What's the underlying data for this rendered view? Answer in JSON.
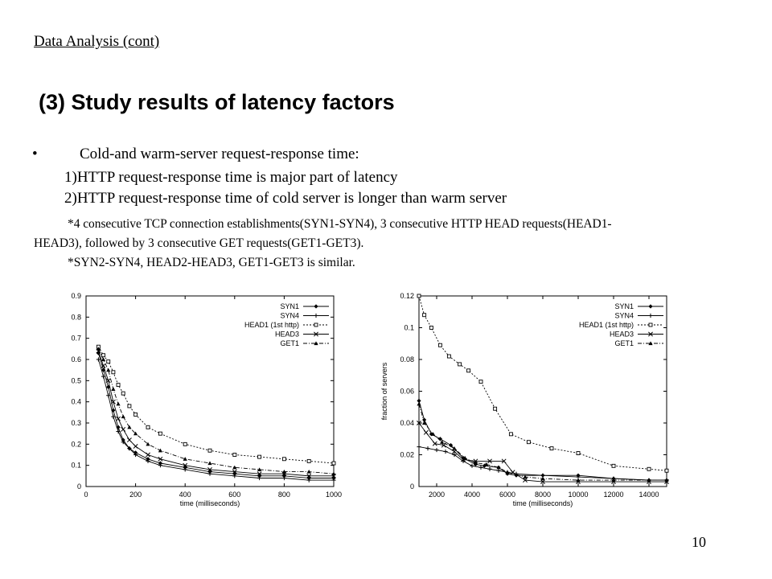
{
  "slide": {
    "section_header": "Data Analysis (cont)",
    "title": "(3) Study results of latency factors",
    "bullet": "•",
    "bullet_text": "Cold-and warm-server request-response time:",
    "points": [
      "1)HTTP request-response time is major part of latency",
      "2)HTTP request-response time of cold server is longer than warm server"
    ],
    "notes": [
      "*4 consecutive TCP connection establishments(SYN1-SYN4), 3 consecutive HTTP HEAD requests(HEAD1-",
      "HEAD3), followed by 3 consecutive GET requests(GET1-GET3).",
      "*SYN2-SYN4, HEAD2-HEAD3, GET1-GET3 is similar."
    ],
    "page_number": "10"
  },
  "chart_data": [
    {
      "type": "line",
      "xlabel": "time (milliseconds)",
      "ylabel": "",
      "xlim": [
        0,
        1000
      ],
      "ylim": [
        0,
        0.9
      ],
      "x_ticks": [
        "0",
        "200",
        "400",
        "600",
        "800",
        "1000"
      ],
      "y_ticks": [
        "0",
        "0.1",
        "0.2",
        "0.3",
        "0.4",
        "0.5",
        "0.6",
        "0.7",
        "0.8",
        "0.9"
      ],
      "legend_position": "top-right",
      "series": [
        {
          "name": "SYN1",
          "marker": "diamond",
          "dash": "solid",
          "points": [
            [
              50,
              0.63
            ],
            [
              70,
              0.55
            ],
            [
              90,
              0.47
            ],
            [
              110,
              0.36
            ],
            [
              130,
              0.28
            ],
            [
              150,
              0.22
            ],
            [
              175,
              0.18
            ],
            [
              200,
              0.16
            ],
            [
              250,
              0.13
            ],
            [
              300,
              0.11
            ],
            [
              400,
              0.09
            ],
            [
              500,
              0.07
            ],
            [
              600,
              0.06
            ],
            [
              700,
              0.05
            ],
            [
              800,
              0.05
            ],
            [
              900,
              0.04
            ],
            [
              1000,
              0.04
            ]
          ]
        },
        {
          "name": "SYN4",
          "marker": "plus",
          "dash": "solid",
          "points": [
            [
              50,
              0.6
            ],
            [
              70,
              0.52
            ],
            [
              90,
              0.43
            ],
            [
              110,
              0.33
            ],
            [
              130,
              0.26
            ],
            [
              150,
              0.21
            ],
            [
              175,
              0.18
            ],
            [
              200,
              0.15
            ],
            [
              250,
              0.12
            ],
            [
              300,
              0.1
            ],
            [
              400,
              0.08
            ],
            [
              500,
              0.06
            ],
            [
              600,
              0.05
            ],
            [
              700,
              0.04
            ],
            [
              800,
              0.04
            ],
            [
              900,
              0.03
            ],
            [
              1000,
              0.03
            ]
          ]
        },
        {
          "name": "HEAD1 (1st http)",
          "marker": "square",
          "dash": "dotted",
          "points": [
            [
              50,
              0.66
            ],
            [
              70,
              0.62
            ],
            [
              90,
              0.59
            ],
            [
              110,
              0.54
            ],
            [
              130,
              0.48
            ],
            [
              150,
              0.44
            ],
            [
              175,
              0.38
            ],
            [
              200,
              0.34
            ],
            [
              250,
              0.28
            ],
            [
              300,
              0.25
            ],
            [
              400,
              0.2
            ],
            [
              500,
              0.17
            ],
            [
              600,
              0.15
            ],
            [
              700,
              0.14
            ],
            [
              800,
              0.13
            ],
            [
              900,
              0.12
            ],
            [
              1000,
              0.11
            ]
          ]
        },
        {
          "name": "HEAD3",
          "marker": "x",
          "dash": "solid",
          "points": [
            [
              50,
              0.64
            ],
            [
              70,
              0.57
            ],
            [
              90,
              0.5
            ],
            [
              110,
              0.4
            ],
            [
              130,
              0.32
            ],
            [
              150,
              0.27
            ],
            [
              175,
              0.22
            ],
            [
              200,
              0.19
            ],
            [
              250,
              0.15
            ],
            [
              300,
              0.13
            ],
            [
              400,
              0.1
            ],
            [
              500,
              0.08
            ],
            [
              600,
              0.07
            ],
            [
              700,
              0.06
            ],
            [
              800,
              0.06
            ],
            [
              900,
              0.05
            ],
            [
              1000,
              0.05
            ]
          ]
        },
        {
          "name": "GET1",
          "marker": "triangle",
          "dash": "dashdot",
          "points": [
            [
              50,
              0.65
            ],
            [
              70,
              0.6
            ],
            [
              90,
              0.55
            ],
            [
              110,
              0.46
            ],
            [
              130,
              0.39
            ],
            [
              150,
              0.33
            ],
            [
              175,
              0.28
            ],
            [
              200,
              0.25
            ],
            [
              250,
              0.2
            ],
            [
              300,
              0.17
            ],
            [
              400,
              0.13
            ],
            [
              500,
              0.11
            ],
            [
              600,
              0.09
            ],
            [
              700,
              0.08
            ],
            [
              800,
              0.07
            ],
            [
              900,
              0.07
            ],
            [
              1000,
              0.06
            ]
          ]
        }
      ]
    },
    {
      "type": "line",
      "xlabel": "time (milliseconds)",
      "ylabel": "fraction of servers",
      "xlim": [
        1000,
        15000
      ],
      "ylim": [
        0,
        0.12
      ],
      "x_ticks": [
        "2000",
        "4000",
        "6000",
        "8000",
        "10000",
        "12000",
        "14000"
      ],
      "y_ticks": [
        "0",
        "0.02",
        "0.04",
        "0.06",
        "0.08",
        "0.1",
        "0.12"
      ],
      "legend_position": "top-right",
      "series": [
        {
          "name": "SYN1",
          "marker": "diamond",
          "dash": "solid",
          "points": [
            [
              1000,
              0.054
            ],
            [
              1300,
              0.042
            ],
            [
              1700,
              0.033
            ],
            [
              2200,
              0.03
            ],
            [
              2800,
              0.026
            ],
            [
              3500,
              0.018
            ],
            [
              4200,
              0.014
            ],
            [
              4700,
              0.013
            ],
            [
              5500,
              0.012
            ],
            [
              6000,
              0.008
            ],
            [
              6500,
              0.007
            ],
            [
              8000,
              0.007
            ],
            [
              10000,
              0.007
            ],
            [
              12000,
              0.005
            ],
            [
              14000,
              0.004
            ],
            [
              15000,
              0.004
            ]
          ]
        },
        {
          "name": "SYN4",
          "marker": "plus",
          "dash": "solid",
          "points": [
            [
              1000,
              0.025
            ],
            [
              1500,
              0.024
            ],
            [
              2000,
              0.023
            ],
            [
              2500,
              0.022
            ],
            [
              3000,
              0.02
            ],
            [
              3500,
              0.016
            ],
            [
              4000,
              0.013
            ],
            [
              4500,
              0.012
            ],
            [
              5000,
              0.011
            ],
            [
              5500,
              0.01
            ],
            [
              6000,
              0.009
            ],
            [
              6500,
              0.008
            ],
            [
              8000,
              0.007
            ],
            [
              10000,
              0.006
            ],
            [
              12000,
              0.005
            ],
            [
              14000,
              0.004
            ],
            [
              15000,
              0.004
            ]
          ]
        },
        {
          "name": "HEAD1 (1st http)",
          "marker": "square",
          "dash": "dotted",
          "points": [
            [
              1000,
              0.12
            ],
            [
              1300,
              0.108
            ],
            [
              1700,
              0.1
            ],
            [
              2200,
              0.089
            ],
            [
              2700,
              0.082
            ],
            [
              3300,
              0.077
            ],
            [
              3800,
              0.073
            ],
            [
              4500,
              0.066
            ],
            [
              5300,
              0.049
            ],
            [
              6200,
              0.033
            ],
            [
              7200,
              0.028
            ],
            [
              8500,
              0.024
            ],
            [
              10000,
              0.021
            ],
            [
              12000,
              0.013
            ],
            [
              14000,
              0.011
            ],
            [
              15000,
              0.01
            ]
          ]
        },
        {
          "name": "HEAD3",
          "marker": "x",
          "dash": "solid",
          "points": [
            [
              1000,
              0.04
            ],
            [
              1400,
              0.034
            ],
            [
              1900,
              0.027
            ],
            [
              2400,
              0.026
            ],
            [
              3000,
              0.022
            ],
            [
              3500,
              0.017
            ],
            [
              4200,
              0.016
            ],
            [
              5000,
              0.016
            ],
            [
              5800,
              0.016
            ],
            [
              6300,
              0.009
            ],
            [
              7000,
              0.004
            ],
            [
              8000,
              0.003
            ],
            [
              10000,
              0.003
            ],
            [
              12000,
              0.003
            ],
            [
              14000,
              0.003
            ],
            [
              15000,
              0.003
            ]
          ]
        },
        {
          "name": "GET1",
          "marker": "triangle",
          "dash": "dashdot",
          "points": [
            [
              1000,
              0.052
            ],
            [
              1300,
              0.04
            ],
            [
              1800,
              0.033
            ],
            [
              2300,
              0.028
            ],
            [
              3000,
              0.024
            ],
            [
              3600,
              0.018
            ],
            [
              4200,
              0.015
            ],
            [
              4800,
              0.014
            ],
            [
              5500,
              0.012
            ],
            [
              6000,
              0.009
            ],
            [
              7000,
              0.006
            ],
            [
              8000,
              0.005
            ],
            [
              10000,
              0.004
            ],
            [
              12000,
              0.004
            ],
            [
              14000,
              0.004
            ],
            [
              15000,
              0.004
            ]
          ]
        }
      ]
    }
  ]
}
